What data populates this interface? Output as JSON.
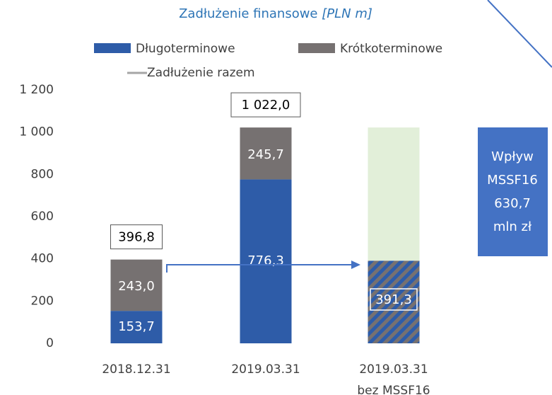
{
  "chart_data": {
    "type": "bar",
    "stacked": true,
    "title": "Zadłużenie finansowe",
    "title_unit": "[PLN m]",
    "categories": [
      [
        "2018.12.31"
      ],
      [
        "2019.03.31"
      ],
      [
        "2019.03.31",
        "bez MSSF16"
      ]
    ],
    "series": [
      {
        "name": "Długoterminowe",
        "color": "#2e5ca8",
        "values": [
          153.7,
          776.3,
          null
        ],
        "value_labels": [
          "153,7",
          "776,3",
          null
        ]
      },
      {
        "name": "Krótkoterminowe",
        "color": "#767171",
        "values": [
          243.0,
          245.7,
          null
        ],
        "value_labels": [
          "243,0",
          "245,7",
          null
        ]
      }
    ],
    "total": {
      "name": "Zadłużenie razem",
      "color": "#a6a6a6",
      "values": [
        396.8,
        1022.0,
        null
      ],
      "value_labels": [
        "396,8",
        "1 022,0",
        null
      ]
    },
    "adjusted": {
      "values": [
        null,
        null,
        391.3
      ],
      "value_labels": [
        null,
        null,
        "391,3"
      ]
    },
    "impact": {
      "color": "#e2efd9",
      "values": [
        null,
        null,
        630.7
      ],
      "value_labels": [
        null,
        null,
        "630,7"
      ],
      "lines_before": [
        "Wpływ",
        "MSSF16"
      ],
      "lines_after": [
        "mln zł"
      ],
      "box_color": "#4472c4"
    },
    "ylim": [
      0,
      1200
    ],
    "yticks": [
      0,
      200,
      400,
      600,
      800,
      {
        "value": 1000,
        "label": "1 000"
      },
      {
        "value": 1200,
        "label": "1 200"
      }
    ]
  }
}
